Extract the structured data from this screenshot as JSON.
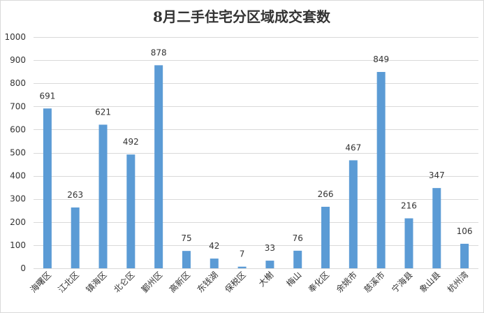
{
  "chart_data": {
    "type": "bar",
    "title": "8月二手住宅分区域成交套数",
    "categories": [
      "海曙区",
      "江北区",
      "镇海区",
      "北仑区",
      "鄞州区",
      "高新区",
      "东钱湖",
      "保税区",
      "大榭",
      "梅山",
      "奉化区",
      "余姚市",
      "慈溪市",
      "宁海县",
      "象山县",
      "杭州湾"
    ],
    "values": [
      691,
      263,
      621,
      492,
      878,
      75,
      42,
      7,
      33,
      76,
      266,
      467,
      849,
      216,
      347,
      106
    ],
    "ylim": [
      0,
      1000
    ],
    "yticks": [
      0,
      100,
      200,
      300,
      400,
      500,
      600,
      700,
      800,
      900,
      1000
    ],
    "gridlines": true,
    "bar_color": "#5B9BD5",
    "gridline_color": "#D9D9D9",
    "legend": "none"
  }
}
